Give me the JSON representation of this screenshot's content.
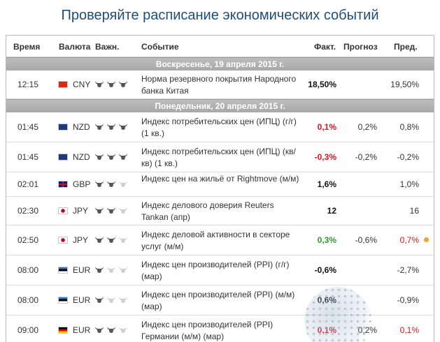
{
  "heading": "Проверяйте расписание экономических событий",
  "columns": {
    "time": "Время",
    "currency": "Валюта",
    "importance": "Важн.",
    "event": "Событие",
    "actual": "Факт.",
    "forecast": "Прогноз",
    "previous": "Пред."
  },
  "days": [
    {
      "label": "Воскресенье, 19 апреля 2015 г.",
      "events": [
        {
          "time": "12:15",
          "country": "CN",
          "currency": "CNY",
          "importance": 3,
          "event": "Норма резервного покрытия Народного банка Китая",
          "actual": "18,50%",
          "actual_color": "#111111",
          "forecast": "",
          "previous": "19,50%",
          "previous_color": "#333333",
          "alert": false
        }
      ]
    },
    {
      "label": "Понедельник, 20 апреля 2015 г.",
      "events": [
        {
          "time": "01:45",
          "country": "NZ",
          "currency": "NZD",
          "importance": 3,
          "event": "Индекс потребительских цен (ИПЦ) (г/г) (1 кв.)",
          "actual": "0,1%",
          "actual_color": "#e2111b",
          "forecast": "0,2%",
          "previous": "0,8%",
          "previous_color": "#333333",
          "alert": false
        },
        {
          "time": "01:45",
          "country": "NZ",
          "currency": "NZD",
          "importance": 3,
          "event": "Индекс потребительских цен (ИПЦ) (кв/кв) (1 кв.)",
          "actual": "-0,3%",
          "actual_color": "#e2111b",
          "forecast": "-0,2%",
          "previous": "-0,2%",
          "previous_color": "#333333",
          "alert": false
        },
        {
          "time": "02:01",
          "country": "GB",
          "currency": "GBP",
          "importance": 2,
          "event": "Индекс цен на жильё от Rightmove (м/м)",
          "actual": "1,6%",
          "actual_color": "#111111",
          "forecast": "",
          "previous": "1,0%",
          "previous_color": "#333333",
          "alert": false
        },
        {
          "time": "02:30",
          "country": "JP",
          "currency": "JPY",
          "importance": 2,
          "event": "Индекс делового доверия Reuters Tankan (апр)",
          "actual": "12",
          "actual_color": "#111111",
          "forecast": "",
          "previous": "16",
          "previous_color": "#333333",
          "alert": false
        },
        {
          "time": "02:50",
          "country": "JP",
          "currency": "JPY",
          "importance": 2,
          "event": "Индекс деловой активности в секторе услуг (м/м)",
          "actual": "0,3%",
          "actual_color": "#2e9b2e",
          "forecast": "-0,6%",
          "previous": "0,7%",
          "previous_color": "#e2111b",
          "alert": true
        },
        {
          "time": "08:00",
          "country": "EE",
          "currency": "EUR",
          "importance": 1,
          "event": "Индекс цен производителей (PPI) (г/г) (мар)",
          "actual": "-0,6%",
          "actual_color": "#111111",
          "forecast": "",
          "previous": "-2,7%",
          "previous_color": "#333333",
          "alert": false
        },
        {
          "time": "08:00",
          "country": "EE",
          "currency": "EUR",
          "importance": 1,
          "event": "Индекс цен производителей (PPI) (м/м) (мар)",
          "actual": "0,6%",
          "actual_color": "#111111",
          "forecast": "",
          "previous": "-0,9%",
          "previous_color": "#333333",
          "alert": false
        },
        {
          "time": "09:00",
          "country": "DE",
          "currency": "EUR",
          "importance": 2,
          "event": "Индекс цен производителей (PPI) Германии (м/м) (мар)",
          "actual": "0,1%",
          "actual_color": "#e2111b",
          "forecast": "0,2%",
          "previous": "0,1%",
          "previous_color": "#e2111b",
          "alert": false
        }
      ]
    }
  ],
  "colors": {
    "heading": "#1f4e79",
    "red": "#e2111b",
    "green": "#2e9b2e",
    "day_bar": "#aaaaaa",
    "alert_dot": "#e3a93d"
  }
}
